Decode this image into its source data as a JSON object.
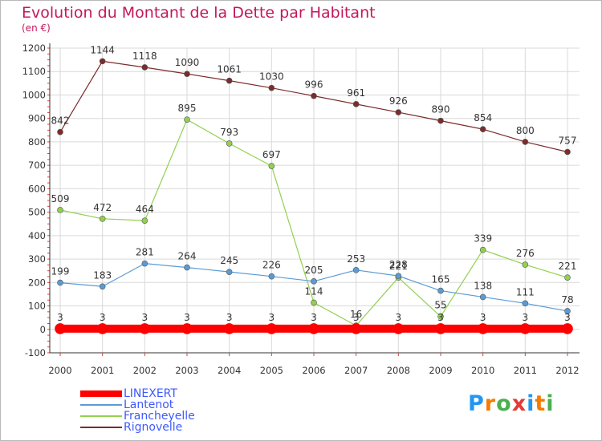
{
  "title": "Evolution du Montant de la Dette par Habitant",
  "subtitle": "(en €)",
  "logo": {
    "text": "Proxiti",
    "colors": [
      "#2196f3",
      "#f57c00",
      "#4caf50",
      "#e53935",
      "#2196f3",
      "#f57c00",
      "#4caf50"
    ]
  },
  "colors": {
    "title": "#c2185b",
    "legend_text": "#3d5afe",
    "axis": "#333333",
    "grid": "#d9d9d9"
  },
  "chart_data": {
    "type": "line",
    "x": [
      "2000",
      "2001",
      "2002",
      "2003",
      "2004",
      "2005",
      "2006",
      "2007",
      "2008",
      "2009",
      "2010",
      "2011",
      "2012"
    ],
    "ylim": [
      -100,
      1200
    ],
    "yticks": [
      -100,
      0,
      100,
      200,
      300,
      400,
      500,
      600,
      700,
      800,
      900,
      1000,
      1100,
      1200
    ],
    "grid": true,
    "legend_position": "bottom-left",
    "series": [
      {
        "name": "LINEXERT",
        "color": "#ff0000",
        "width": 10,
        "marker": 6.5,
        "values": [
          3,
          3,
          3,
          3,
          3,
          3,
          3,
          3,
          3,
          3,
          3,
          3,
          3
        ],
        "labels": [
          "3",
          "3",
          "3",
          "3",
          "3",
          "3",
          "3",
          "3",
          "3",
          "3",
          "3",
          "3",
          "3"
        ]
      },
      {
        "name": "Lantenot",
        "color": "#5b9bd5",
        "width": 1.2,
        "marker": 3.5,
        "values": [
          199,
          183,
          281,
          264,
          245,
          226,
          205,
          253,
          228,
          165,
          138,
          111,
          78
        ],
        "labels": [
          "199",
          "183",
          "281",
          "264",
          "245",
          "226",
          "205",
          "253",
          "228",
          "165",
          "138",
          "111",
          "78"
        ]
      },
      {
        "name": "Francheyelle",
        "color": "#92d050",
        "width": 1.2,
        "marker": 3.5,
        "values": [
          509,
          472,
          464,
          895,
          793,
          697,
          114,
          16,
          221,
          55,
          339,
          276,
          221
        ],
        "labels": [
          "509",
          "472",
          "464",
          "895",
          "793",
          "697",
          "114",
          "16",
          "221",
          "55",
          "339",
          "276",
          "221"
        ]
      },
      {
        "name": "Rignovelle",
        "color": "#7b2c2c",
        "width": 1.2,
        "marker": 3.5,
        "values": [
          842,
          1144,
          1118,
          1090,
          1061,
          1030,
          996,
          961,
          926,
          890,
          854,
          800,
          757
        ],
        "labels": [
          "842",
          "1144",
          "1118",
          "1090",
          "1061",
          "1030",
          "996",
          "961",
          "926",
          "890",
          "854",
          "800",
          "757"
        ]
      }
    ]
  }
}
